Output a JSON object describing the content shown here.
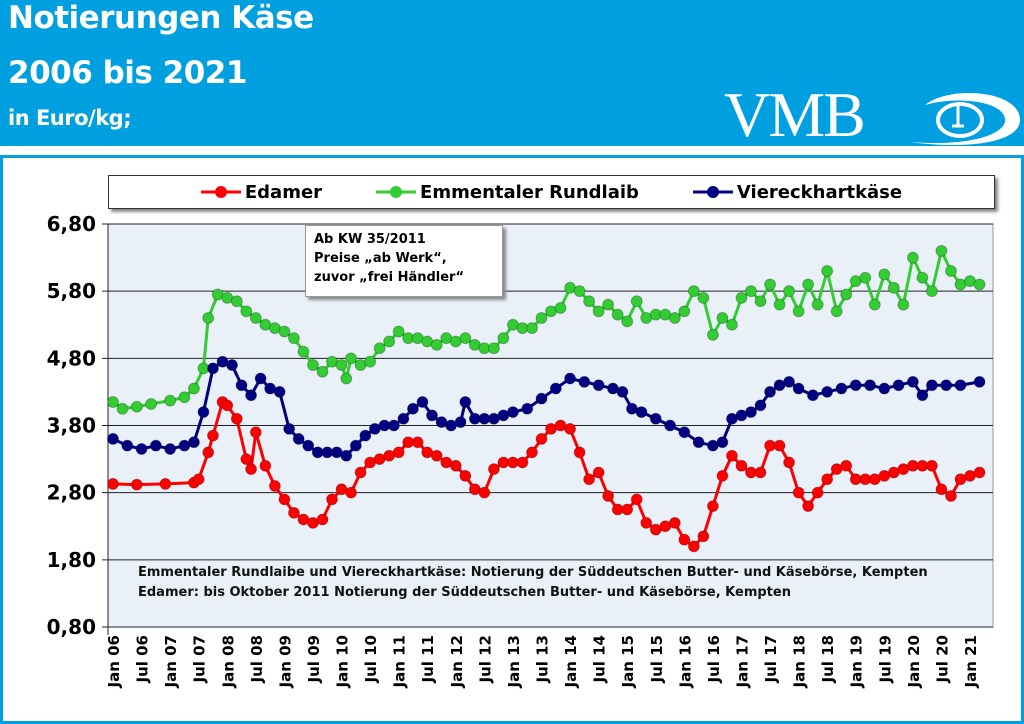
{
  "header": {
    "title_line1": "Notierungen  Käse",
    "title_line2": "2006 bis 2021",
    "unit": "in  Euro/kg;",
    "logo_text": "VMB"
  },
  "colors": {
    "header_bg": "#009fe0",
    "plot_bg": "#eaf0f8",
    "edamer": "#ff0000",
    "emmentaler": "#33cc33",
    "viereck": "#000080"
  },
  "chart_data": {
    "type": "line",
    "ylim": [
      0.8,
      6.8
    ],
    "yticks": [
      "0,80",
      "1,80",
      "2,80",
      "3,80",
      "4,80",
      "5,80",
      "6,80"
    ],
    "ytick_values": [
      0.8,
      1.8,
      2.8,
      3.8,
      4.8,
      5.8,
      6.8
    ],
    "grid": true,
    "legend_placement": "top",
    "xticks": [
      "Jan 06",
      "Jul 06",
      "Jan 07",
      "Jul 07",
      "Jan 08",
      "Jul 08",
      "Jan 09",
      "Jul 09",
      "Jan 10",
      "Jul 10",
      "Jan 11",
      "Jul 11",
      "Jan 12",
      "Jul 12",
      "Jan 13",
      "Jul 13",
      "Jan 14",
      "Jul 14",
      "Jan 15",
      "Jul 15",
      "Jan 16",
      "Jul 16",
      "Jan 17",
      "Jul 17",
      "Jan 18",
      "Jul 18",
      "Jan 19",
      "Jul 19",
      "Jan 20",
      "Jul 20",
      "Jan 21"
    ],
    "xtick_dates": [
      "2006-01",
      "2006-07",
      "2007-01",
      "2007-07",
      "2008-01",
      "2008-07",
      "2009-01",
      "2009-07",
      "2010-01",
      "2010-07",
      "2011-01",
      "2011-07",
      "2012-01",
      "2012-07",
      "2013-01",
      "2013-07",
      "2014-01",
      "2014-07",
      "2015-01",
      "2015-07",
      "2016-01",
      "2016-07",
      "2017-01",
      "2017-07",
      "2018-01",
      "2018-07",
      "2019-01",
      "2019-07",
      "2020-01",
      "2020-07",
      "2021-01"
    ],
    "annotation": [
      "Ab KW 35/2011",
      "Preise „ab Werk“,",
      "zuvor „frei Händler“"
    ],
    "footnotes": [
      "Emmentaler Rundlaibe und Viereckhartkäse: Notierung der Süddeutschen Butter-  und Käsebörse, Kempten",
      "Edamer: bis Oktober 2011 Notierung der Süddeutschen Butter- und Käsebörse, Kempten"
    ],
    "series": [
      {
        "name": "Edamer",
        "color": "#ff0000",
        "points": [
          [
            "2006-01",
            2.93
          ],
          [
            "2006-06",
            2.92
          ],
          [
            "2006-12",
            2.93
          ],
          [
            "2007-06",
            2.95
          ],
          [
            "2007-07",
            3.0
          ],
          [
            "2007-09",
            3.4
          ],
          [
            "2007-10",
            3.65
          ],
          [
            "2007-12",
            4.15
          ],
          [
            "2008-01",
            4.1
          ],
          [
            "2008-03",
            3.9
          ],
          [
            "2008-05",
            3.3
          ],
          [
            "2008-06",
            3.15
          ],
          [
            "2008-07",
            3.7
          ],
          [
            "2008-09",
            3.2
          ],
          [
            "2008-11",
            2.9
          ],
          [
            "2009-01",
            2.7
          ],
          [
            "2009-03",
            2.5
          ],
          [
            "2009-05",
            2.4
          ],
          [
            "2009-07",
            2.35
          ],
          [
            "2009-09",
            2.4
          ],
          [
            "2009-11",
            2.7
          ],
          [
            "2010-01",
            2.85
          ],
          [
            "2010-03",
            2.8
          ],
          [
            "2010-05",
            3.1
          ],
          [
            "2010-07",
            3.25
          ],
          [
            "2010-09",
            3.3
          ],
          [
            "2010-11",
            3.35
          ],
          [
            "2011-01",
            3.4
          ],
          [
            "2011-03",
            3.55
          ],
          [
            "2011-05",
            3.55
          ],
          [
            "2011-07",
            3.4
          ],
          [
            "2011-09",
            3.35
          ],
          [
            "2011-11",
            3.25
          ],
          [
            "2012-01",
            3.2
          ],
          [
            "2012-03",
            3.05
          ],
          [
            "2012-05",
            2.85
          ],
          [
            "2012-07",
            2.8
          ],
          [
            "2012-09",
            3.15
          ],
          [
            "2012-11",
            3.25
          ],
          [
            "2013-01",
            3.25
          ],
          [
            "2013-03",
            3.25
          ],
          [
            "2013-05",
            3.4
          ],
          [
            "2013-07",
            3.6
          ],
          [
            "2013-09",
            3.75
          ],
          [
            "2013-11",
            3.8
          ],
          [
            "2014-01",
            3.75
          ],
          [
            "2014-03",
            3.4
          ],
          [
            "2014-05",
            3.0
          ],
          [
            "2014-07",
            3.1
          ],
          [
            "2014-09",
            2.75
          ],
          [
            "2014-11",
            2.55
          ],
          [
            "2015-01",
            2.55
          ],
          [
            "2015-03",
            2.7
          ],
          [
            "2015-05",
            2.35
          ],
          [
            "2015-07",
            2.25
          ],
          [
            "2015-09",
            2.3
          ],
          [
            "2015-11",
            2.35
          ],
          [
            "2016-01",
            2.1
          ],
          [
            "2016-03",
            2.0
          ],
          [
            "2016-05",
            2.15
          ],
          [
            "2016-07",
            2.6
          ],
          [
            "2016-09",
            3.05
          ],
          [
            "2016-11",
            3.35
          ],
          [
            "2017-01",
            3.2
          ],
          [
            "2017-03",
            3.1
          ],
          [
            "2017-05",
            3.1
          ],
          [
            "2017-07",
            3.5
          ],
          [
            "2017-09",
            3.5
          ],
          [
            "2017-11",
            3.25
          ],
          [
            "2018-01",
            2.8
          ],
          [
            "2018-03",
            2.6
          ],
          [
            "2018-05",
            2.8
          ],
          [
            "2018-07",
            3.0
          ],
          [
            "2018-09",
            3.15
          ],
          [
            "2018-11",
            3.2
          ],
          [
            "2019-01",
            3.0
          ],
          [
            "2019-03",
            3.0
          ],
          [
            "2019-05",
            3.0
          ],
          [
            "2019-07",
            3.05
          ],
          [
            "2019-09",
            3.1
          ],
          [
            "2019-11",
            3.15
          ],
          [
            "2020-01",
            3.2
          ],
          [
            "2020-03",
            3.2
          ],
          [
            "2020-05",
            3.2
          ],
          [
            "2020-07",
            2.85
          ],
          [
            "2020-09",
            2.75
          ],
          [
            "2020-11",
            3.0
          ],
          [
            "2021-01",
            3.05
          ],
          [
            "2021-03",
            3.1
          ]
        ]
      },
      {
        "name": "Emmentaler Rundlaib",
        "color": "#33cc33",
        "points": [
          [
            "2006-01",
            4.15
          ],
          [
            "2006-03",
            4.05
          ],
          [
            "2006-06",
            4.08
          ],
          [
            "2006-09",
            4.12
          ],
          [
            "2007-01",
            4.17
          ],
          [
            "2007-04",
            4.22
          ],
          [
            "2007-06",
            4.35
          ],
          [
            "2007-08",
            4.65
          ],
          [
            "2007-09",
            5.4
          ],
          [
            "2007-11",
            5.75
          ],
          [
            "2008-01",
            5.7
          ],
          [
            "2008-03",
            5.65
          ],
          [
            "2008-05",
            5.5
          ],
          [
            "2008-07",
            5.4
          ],
          [
            "2008-09",
            5.3
          ],
          [
            "2008-11",
            5.25
          ],
          [
            "2009-01",
            5.2
          ],
          [
            "2009-03",
            5.1
          ],
          [
            "2009-05",
            4.9
          ],
          [
            "2009-07",
            4.7
          ],
          [
            "2009-09",
            4.6
          ],
          [
            "2009-11",
            4.75
          ],
          [
            "2010-01",
            4.7
          ],
          [
            "2010-02",
            4.5
          ],
          [
            "2010-03",
            4.8
          ],
          [
            "2010-05",
            4.7
          ],
          [
            "2010-07",
            4.75
          ],
          [
            "2010-09",
            4.95
          ],
          [
            "2010-11",
            5.05
          ],
          [
            "2011-01",
            5.2
          ],
          [
            "2011-03",
            5.1
          ],
          [
            "2011-05",
            5.1
          ],
          [
            "2011-07",
            5.05
          ],
          [
            "2011-09",
            5.0
          ],
          [
            "2011-11",
            5.1
          ],
          [
            "2012-01",
            5.05
          ],
          [
            "2012-03",
            5.1
          ],
          [
            "2012-05",
            5.0
          ],
          [
            "2012-07",
            4.95
          ],
          [
            "2012-09",
            4.95
          ],
          [
            "2012-11",
            5.1
          ],
          [
            "2013-01",
            5.3
          ],
          [
            "2013-03",
            5.25
          ],
          [
            "2013-05",
            5.25
          ],
          [
            "2013-07",
            5.4
          ],
          [
            "2013-09",
            5.5
          ],
          [
            "2013-11",
            5.55
          ],
          [
            "2014-01",
            5.85
          ],
          [
            "2014-03",
            5.8
          ],
          [
            "2014-05",
            5.65
          ],
          [
            "2014-07",
            5.5
          ],
          [
            "2014-09",
            5.6
          ],
          [
            "2014-11",
            5.45
          ],
          [
            "2015-01",
            5.35
          ],
          [
            "2015-03",
            5.65
          ],
          [
            "2015-05",
            5.4
          ],
          [
            "2015-07",
            5.45
          ],
          [
            "2015-09",
            5.45
          ],
          [
            "2015-11",
            5.4
          ],
          [
            "2016-01",
            5.5
          ],
          [
            "2016-03",
            5.8
          ],
          [
            "2016-05",
            5.7
          ],
          [
            "2016-07",
            5.15
          ],
          [
            "2016-09",
            5.4
          ],
          [
            "2016-11",
            5.3
          ],
          [
            "2017-01",
            5.7
          ],
          [
            "2017-03",
            5.8
          ],
          [
            "2017-05",
            5.65
          ],
          [
            "2017-07",
            5.9
          ],
          [
            "2017-09",
            5.6
          ],
          [
            "2017-11",
            5.8
          ],
          [
            "2018-01",
            5.5
          ],
          [
            "2018-03",
            5.9
          ],
          [
            "2018-05",
            5.6
          ],
          [
            "2018-07",
            6.1
          ],
          [
            "2018-09",
            5.5
          ],
          [
            "2018-11",
            5.75
          ],
          [
            "2019-01",
            5.95
          ],
          [
            "2019-03",
            6.0
          ],
          [
            "2019-05",
            5.6
          ],
          [
            "2019-07",
            6.05
          ],
          [
            "2019-09",
            5.85
          ],
          [
            "2019-11",
            5.6
          ],
          [
            "2020-01",
            6.3
          ],
          [
            "2020-03",
            6.0
          ],
          [
            "2020-05",
            5.8
          ],
          [
            "2020-07",
            6.4
          ],
          [
            "2020-09",
            6.1
          ],
          [
            "2020-11",
            5.9
          ],
          [
            "2021-01",
            5.95
          ],
          [
            "2021-03",
            5.9
          ]
        ]
      },
      {
        "name": "Viereckhartkäse",
        "color": "#000080",
        "points": [
          [
            "2006-01",
            3.6
          ],
          [
            "2006-04",
            3.5
          ],
          [
            "2006-07",
            3.45
          ],
          [
            "2006-10",
            3.5
          ],
          [
            "2007-01",
            3.45
          ],
          [
            "2007-04",
            3.5
          ],
          [
            "2007-06",
            3.55
          ],
          [
            "2007-08",
            4.0
          ],
          [
            "2007-10",
            4.65
          ],
          [
            "2007-12",
            4.75
          ],
          [
            "2008-02",
            4.7
          ],
          [
            "2008-04",
            4.4
          ],
          [
            "2008-06",
            4.25
          ],
          [
            "2008-08",
            4.5
          ],
          [
            "2008-10",
            4.35
          ],
          [
            "2008-12",
            4.3
          ],
          [
            "2009-02",
            3.75
          ],
          [
            "2009-04",
            3.6
          ],
          [
            "2009-06",
            3.5
          ],
          [
            "2009-08",
            3.4
          ],
          [
            "2009-10",
            3.4
          ],
          [
            "2009-12",
            3.4
          ],
          [
            "2010-02",
            3.35
          ],
          [
            "2010-04",
            3.5
          ],
          [
            "2010-06",
            3.65
          ],
          [
            "2010-08",
            3.75
          ],
          [
            "2010-10",
            3.8
          ],
          [
            "2010-12",
            3.8
          ],
          [
            "2011-02",
            3.9
          ],
          [
            "2011-04",
            4.05
          ],
          [
            "2011-06",
            4.15
          ],
          [
            "2011-08",
            3.95
          ],
          [
            "2011-10",
            3.85
          ],
          [
            "2011-12",
            3.8
          ],
          [
            "2012-02",
            3.85
          ],
          [
            "2012-03",
            4.15
          ],
          [
            "2012-05",
            3.9
          ],
          [
            "2012-07",
            3.9
          ],
          [
            "2012-09",
            3.9
          ],
          [
            "2012-11",
            3.95
          ],
          [
            "2013-01",
            4.0
          ],
          [
            "2013-04",
            4.05
          ],
          [
            "2013-07",
            4.2
          ],
          [
            "2013-10",
            4.35
          ],
          [
            "2014-01",
            4.5
          ],
          [
            "2014-04",
            4.45
          ],
          [
            "2014-07",
            4.4
          ],
          [
            "2014-10",
            4.35
          ],
          [
            "2014-12",
            4.3
          ],
          [
            "2015-02",
            4.05
          ],
          [
            "2015-04",
            4.0
          ],
          [
            "2015-07",
            3.9
          ],
          [
            "2015-10",
            3.8
          ],
          [
            "2016-01",
            3.7
          ],
          [
            "2016-04",
            3.55
          ],
          [
            "2016-07",
            3.5
          ],
          [
            "2016-09",
            3.55
          ],
          [
            "2016-11",
            3.9
          ],
          [
            "2017-01",
            3.95
          ],
          [
            "2017-03",
            4.0
          ],
          [
            "2017-05",
            4.1
          ],
          [
            "2017-07",
            4.3
          ],
          [
            "2017-09",
            4.4
          ],
          [
            "2017-11",
            4.45
          ],
          [
            "2018-01",
            4.35
          ],
          [
            "2018-04",
            4.25
          ],
          [
            "2018-07",
            4.3
          ],
          [
            "2018-10",
            4.35
          ],
          [
            "2019-01",
            4.4
          ],
          [
            "2019-04",
            4.4
          ],
          [
            "2019-07",
            4.35
          ],
          [
            "2019-10",
            4.4
          ],
          [
            "2020-01",
            4.45
          ],
          [
            "2020-03",
            4.25
          ],
          [
            "2020-05",
            4.4
          ],
          [
            "2020-08",
            4.4
          ],
          [
            "2020-11",
            4.4
          ],
          [
            "2021-03",
            4.45
          ]
        ]
      }
    ]
  }
}
